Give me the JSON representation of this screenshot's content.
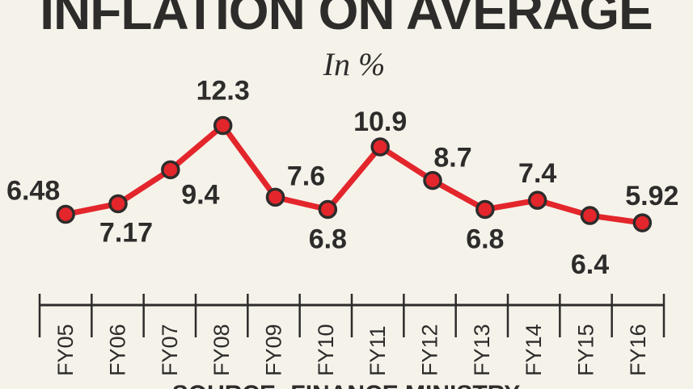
{
  "chart_data": {
    "type": "line",
    "title": "INFLATION ON AVERAGE",
    "subtitle": "In %",
    "categories": [
      "FY05",
      "FY06",
      "FY07",
      "FY08",
      "FY09",
      "FY10",
      "FY11",
      "FY12",
      "FY13",
      "FY14",
      "FY15",
      "FY16"
    ],
    "values": [
      6.48,
      7.17,
      9.4,
      12.3,
      7.6,
      6.8,
      10.9,
      8.7,
      6.8,
      7.4,
      6.4,
      5.92
    ],
    "data_labels": [
      "6.48",
      "7.17",
      "9.4",
      "12.3",
      "7.6",
      "6.8",
      "10.9",
      "8.7",
      "6.8",
      "7.4",
      "6.4",
      "5.92"
    ],
    "source": "SOURCE: FINANCE MINISTRY",
    "grid": false,
    "colors": {
      "line": "#e3262b",
      "marker_stroke": "#2e2c2b",
      "text": "#2e2c2b",
      "background": "#f5f2ea"
    }
  }
}
